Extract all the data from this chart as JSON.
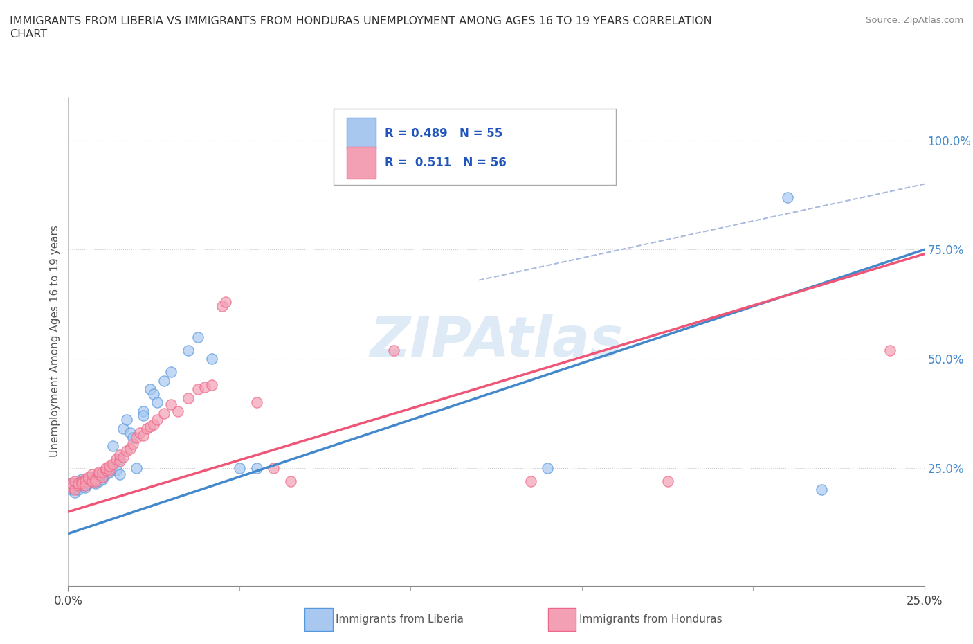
{
  "title_line1": "IMMIGRANTS FROM LIBERIA VS IMMIGRANTS FROM HONDURAS UNEMPLOYMENT AMONG AGES 16 TO 19 YEARS CORRELATION",
  "title_line2": "CHART",
  "source_text": "Source: ZipAtlas.com",
  "ylabel": "Unemployment Among Ages 16 to 19 years",
  "xlim": [
    0.0,
    0.25
  ],
  "ylim": [
    -0.02,
    1.1
  ],
  "ytick_labels": [
    "25.0%",
    "50.0%",
    "75.0%",
    "100.0%"
  ],
  "ytick_positions": [
    0.25,
    0.5,
    0.75,
    1.0
  ],
  "xtick_major": [
    0.0,
    0.25
  ],
  "xtick_minor": [
    0.05,
    0.1,
    0.15,
    0.2
  ],
  "liberia_color": "#a8c8f0",
  "honduras_color": "#f4a0b4",
  "liberia_edge_color": "#5599dd",
  "honduras_edge_color": "#ee6688",
  "liberia_line_color": "#4488cc",
  "honduras_line_color": "#ee5577",
  "diagonal_line_color": "#aabbdd",
  "background_color": "#ffffff",
  "watermark_color": "#c8ddf0",
  "liberia_R": 0.489,
  "liberia_N": 55,
  "honduras_R": 0.511,
  "honduras_N": 56,
  "liberia_line_x": [
    0.0,
    0.25
  ],
  "liberia_line_y": [
    0.1,
    0.75
  ],
  "honduras_line_x": [
    0.0,
    0.25
  ],
  "honduras_line_y": [
    0.15,
    0.74
  ],
  "diagonal_line_x": [
    0.12,
    0.25
  ],
  "diagonal_line_y": [
    0.68,
    0.9
  ],
  "liberia_scatter": [
    [
      0.001,
      0.2
    ],
    [
      0.001,
      0.215
    ],
    [
      0.002,
      0.195
    ],
    [
      0.002,
      0.21
    ],
    [
      0.003,
      0.215
    ],
    [
      0.003,
      0.205
    ],
    [
      0.003,
      0.2
    ],
    [
      0.004,
      0.225
    ],
    [
      0.004,
      0.22
    ],
    [
      0.004,
      0.215
    ],
    [
      0.005,
      0.21
    ],
    [
      0.005,
      0.215
    ],
    [
      0.005,
      0.22
    ],
    [
      0.005,
      0.205
    ],
    [
      0.006,
      0.22
    ],
    [
      0.006,
      0.225
    ],
    [
      0.006,
      0.215
    ],
    [
      0.007,
      0.225
    ],
    [
      0.007,
      0.22
    ],
    [
      0.007,
      0.23
    ],
    [
      0.008,
      0.22
    ],
    [
      0.008,
      0.215
    ],
    [
      0.009,
      0.23
    ],
    [
      0.009,
      0.22
    ],
    [
      0.01,
      0.225
    ],
    [
      0.01,
      0.23
    ],
    [
      0.01,
      0.235
    ],
    [
      0.011,
      0.24
    ],
    [
      0.011,
      0.235
    ],
    [
      0.012,
      0.24
    ],
    [
      0.012,
      0.25
    ],
    [
      0.013,
      0.3
    ],
    [
      0.014,
      0.245
    ],
    [
      0.015,
      0.235
    ],
    [
      0.015,
      0.27
    ],
    [
      0.016,
      0.34
    ],
    [
      0.017,
      0.36
    ],
    [
      0.018,
      0.33
    ],
    [
      0.019,
      0.32
    ],
    [
      0.02,
      0.25
    ],
    [
      0.022,
      0.38
    ],
    [
      0.022,
      0.37
    ],
    [
      0.024,
      0.43
    ],
    [
      0.025,
      0.42
    ],
    [
      0.026,
      0.4
    ],
    [
      0.028,
      0.45
    ],
    [
      0.03,
      0.47
    ],
    [
      0.035,
      0.52
    ],
    [
      0.038,
      0.55
    ],
    [
      0.042,
      0.5
    ],
    [
      0.05,
      0.25
    ],
    [
      0.055,
      0.25
    ],
    [
      0.14,
      0.25
    ],
    [
      0.21,
      0.87
    ],
    [
      0.22,
      0.2
    ]
  ],
  "honduras_scatter": [
    [
      0.001,
      0.205
    ],
    [
      0.001,
      0.215
    ],
    [
      0.002,
      0.2
    ],
    [
      0.002,
      0.22
    ],
    [
      0.003,
      0.21
    ],
    [
      0.003,
      0.215
    ],
    [
      0.004,
      0.22
    ],
    [
      0.004,
      0.215
    ],
    [
      0.005,
      0.225
    ],
    [
      0.005,
      0.22
    ],
    [
      0.005,
      0.21
    ],
    [
      0.006,
      0.225
    ],
    [
      0.006,
      0.23
    ],
    [
      0.007,
      0.22
    ],
    [
      0.007,
      0.235
    ],
    [
      0.008,
      0.225
    ],
    [
      0.008,
      0.22
    ],
    [
      0.009,
      0.235
    ],
    [
      0.009,
      0.24
    ],
    [
      0.01,
      0.23
    ],
    [
      0.01,
      0.24
    ],
    [
      0.011,
      0.245
    ],
    [
      0.011,
      0.25
    ],
    [
      0.012,
      0.245
    ],
    [
      0.012,
      0.255
    ],
    [
      0.013,
      0.26
    ],
    [
      0.014,
      0.27
    ],
    [
      0.015,
      0.265
    ],
    [
      0.015,
      0.28
    ],
    [
      0.016,
      0.275
    ],
    [
      0.017,
      0.29
    ],
    [
      0.018,
      0.295
    ],
    [
      0.019,
      0.305
    ],
    [
      0.02,
      0.32
    ],
    [
      0.021,
      0.33
    ],
    [
      0.022,
      0.325
    ],
    [
      0.023,
      0.34
    ],
    [
      0.024,
      0.345
    ],
    [
      0.025,
      0.35
    ],
    [
      0.026,
      0.36
    ],
    [
      0.028,
      0.375
    ],
    [
      0.03,
      0.395
    ],
    [
      0.032,
      0.38
    ],
    [
      0.035,
      0.41
    ],
    [
      0.038,
      0.43
    ],
    [
      0.04,
      0.435
    ],
    [
      0.042,
      0.44
    ],
    [
      0.045,
      0.62
    ],
    [
      0.046,
      0.63
    ],
    [
      0.055,
      0.4
    ],
    [
      0.06,
      0.25
    ],
    [
      0.065,
      0.22
    ],
    [
      0.095,
      0.52
    ],
    [
      0.135,
      0.22
    ],
    [
      0.175,
      0.22
    ],
    [
      0.24,
      0.52
    ]
  ]
}
